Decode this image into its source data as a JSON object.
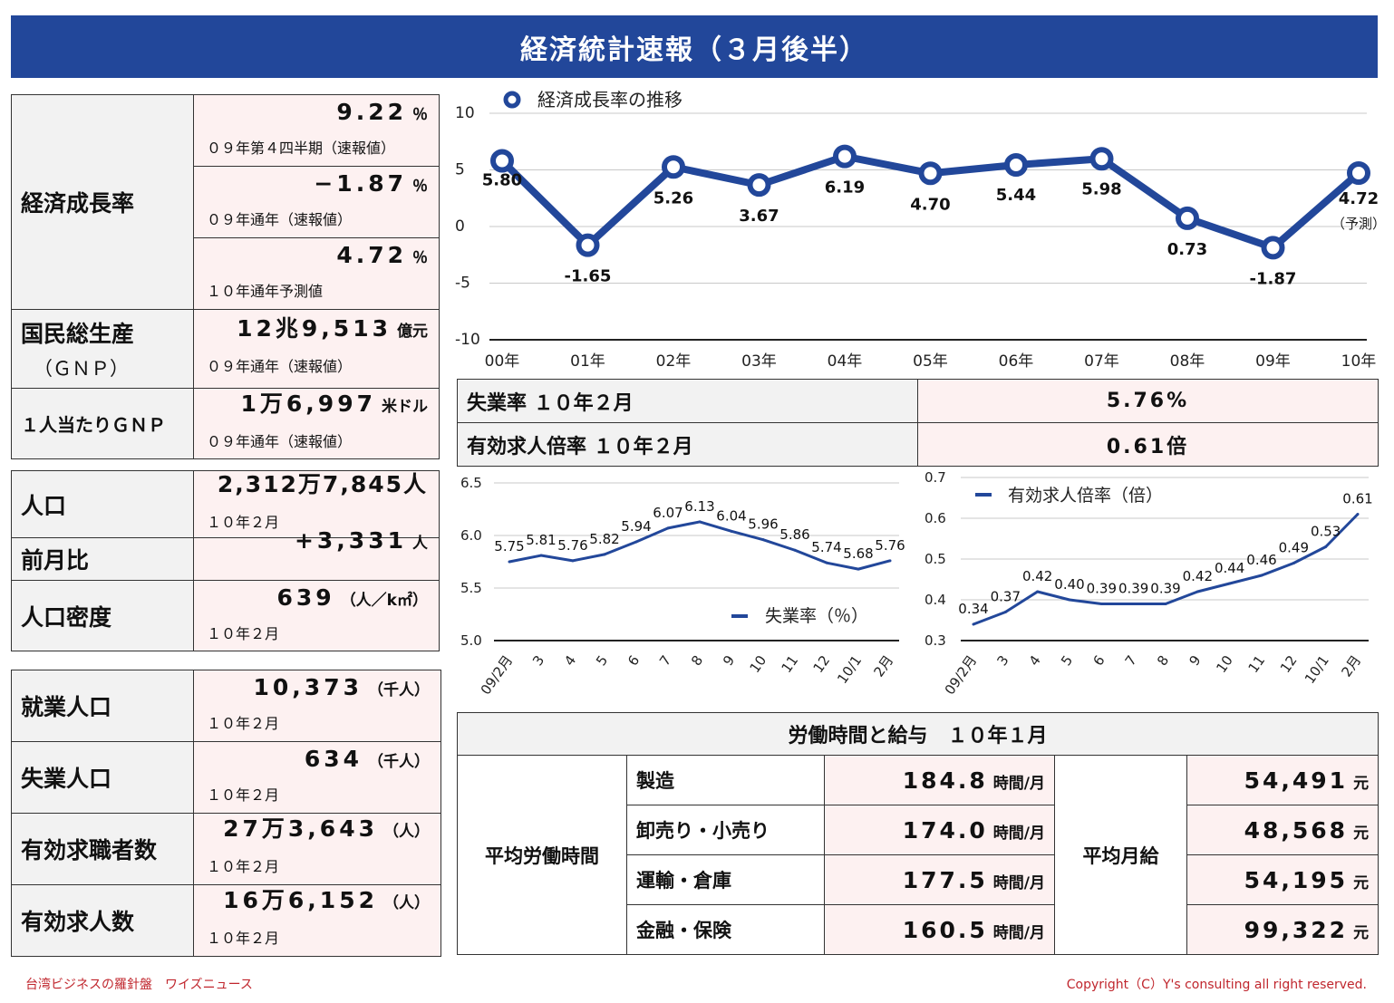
{
  "title": "経済統計速報（３月後半）",
  "gdp_box": {
    "label": "経済成長率",
    "rows": [
      {
        "caption": "０９年第４四半期（速報値）",
        "value": "9.22",
        "unit": "％"
      },
      {
        "caption": "０９年通年（速報値）",
        "value": "−1.87",
        "unit": "％"
      },
      {
        "caption": "１０年通年予測値",
        "value": "4.72",
        "unit": "％"
      }
    ],
    "gnp_label": "国民総生産",
    "gnp_sub": "（ＧＮＰ）",
    "gnp_caption": "０９年通年（速報値）",
    "gnp_value": "12兆9,513",
    "gnp_unit": "億元",
    "per_capita_label": "１人当たりＧＮＰ",
    "per_capita_caption": "０９年通年（速報値）",
    "per_capita_value": "1万6,997",
    "per_capita_unit": "米ドル"
  },
  "population_box": {
    "pop_label": "人口",
    "pop_caption": "１０年２月",
    "pop_value": "2,312万7,845人",
    "mom_label": "前月比",
    "mom_value": "+3,331",
    "mom_unit": "人",
    "density_label": "人口密度",
    "density_caption": "１０年２月",
    "density_value": "639",
    "density_unit": "（人／k㎡）"
  },
  "employment_box": {
    "rows": [
      {
        "label": "就業人口",
        "caption": "１０年２月",
        "value": "10,373",
        "unit": "（千人）"
      },
      {
        "label": "失業人口",
        "caption": "１０年２月",
        "value": "634",
        "unit": "（千人）"
      },
      {
        "label": "有効求職者数",
        "caption": "１０年２月",
        "value": "27万3,643",
        "unit": "（人）"
      },
      {
        "label": "有効求人数",
        "caption": "１０年２月",
        "value": "16万6,152",
        "unit": "（人）"
      }
    ]
  },
  "unemployment_table": {
    "rows": [
      {
        "label": "失業率 １０年２月",
        "value": "5.76%"
      },
      {
        "label": "有効求人倍率 １０年２月",
        "value": "0.61倍"
      }
    ]
  },
  "labor_table": {
    "title": "労働時間と給与　１０年１月",
    "hours_label": "平均労働時間",
    "wage_label": "平均月給",
    "rows": [
      {
        "industry": "製造",
        "hours": "184.8",
        "hours_unit": "時間/月",
        "wage": "54,491",
        "wage_unit": "元"
      },
      {
        "industry": "卸売り・小売り",
        "hours": "174.0",
        "hours_unit": "時間/月",
        "wage": "48,568",
        "wage_unit": "元"
      },
      {
        "industry": "運輸・倉庫",
        "hours": "177.5",
        "hours_unit": "時間/月",
        "wage": "54,195",
        "wage_unit": "元"
      },
      {
        "industry": "金融・保険",
        "hours": "160.5",
        "hours_unit": "時間/月",
        "wage": "99,322",
        "wage_unit": "元"
      }
    ]
  },
  "chart_data": [
    {
      "type": "line",
      "legend": "経済成長率の推移",
      "x": [
        "00年",
        "01年",
        "02年",
        "03年",
        "04年",
        "05年",
        "06年",
        "07年",
        "08年",
        "09年",
        "10年"
      ],
      "values": [
        5.8,
        -1.65,
        5.26,
        3.67,
        6.19,
        4.7,
        5.44,
        5.98,
        0.73,
        -1.87,
        4.72
      ],
      "data_labels": [
        "5.80",
        "-1.65",
        "5.26",
        "3.67",
        "6.19",
        "4.70",
        "5.44",
        "5.98",
        "0.73",
        "-1.87",
        "4.72"
      ],
      "last_note": "（予測）",
      "yticks": [
        "10",
        "5",
        "0",
        "-5",
        "-10"
      ],
      "ylim": [
        -10,
        10
      ],
      "color": "#22479a",
      "marker": "circle"
    },
    {
      "type": "line",
      "legend": "失業率（％）",
      "x": [
        "09/2月",
        "3",
        "4",
        "5",
        "6",
        "7",
        "8",
        "9",
        "10",
        "11",
        "12",
        "10/1",
        "2月"
      ],
      "values": [
        5.75,
        5.81,
        5.76,
        5.82,
        5.94,
        6.07,
        6.13,
        6.04,
        5.96,
        5.86,
        5.74,
        5.68,
        5.76
      ],
      "data_labels": [
        "5.75",
        "5.81",
        "5.76",
        "5.82",
        "5.94",
        "6.07",
        "6.13",
        "6.04",
        "5.96",
        "5.86",
        "5.74",
        "5.68",
        "5.76"
      ],
      "yticks": [
        "6.5",
        "6.0",
        "5.5",
        "5.0"
      ],
      "ylim": [
        5.0,
        6.5
      ],
      "color": "#22479a"
    },
    {
      "type": "line",
      "legend": "有効求人倍率（倍）",
      "x": [
        "09/2月",
        "3",
        "4",
        "5",
        "6",
        "7",
        "8",
        "9",
        "10",
        "11",
        "12",
        "10/1",
        "2月"
      ],
      "values": [
        0.34,
        0.37,
        0.42,
        0.4,
        0.39,
        0.39,
        0.39,
        0.42,
        0.44,
        0.46,
        0.49,
        0.53,
        0.61
      ],
      "data_labels": [
        "0.34",
        "0.37",
        "0.42",
        "0.40",
        "0.39",
        "0.39",
        "0.39",
        "0.42",
        "0.44",
        "0.46",
        "0.49",
        "0.53",
        "0.61"
      ],
      "yticks": [
        "0.7",
        "0.6",
        "0.5",
        "0.4",
        "0.3"
      ],
      "ylim": [
        0.3,
        0.7
      ],
      "color": "#22479a"
    }
  ],
  "footer": {
    "left": "台湾ビジネスの羅針盤　ワイズニュース",
    "right": "Copyright（C）Y's consulting all right reserved."
  }
}
